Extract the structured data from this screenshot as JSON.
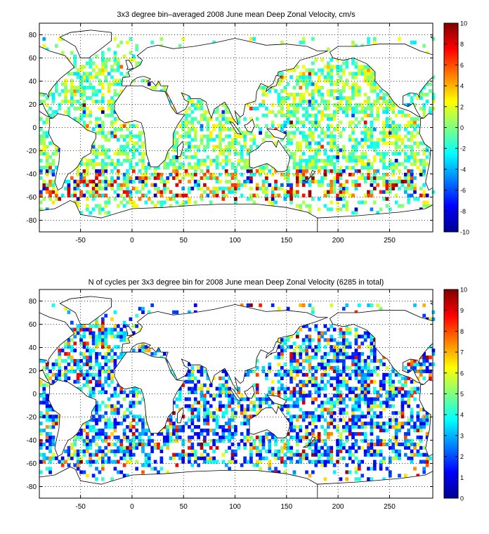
{
  "figure": {
    "background": "#ffffff"
  },
  "chart_data": [
    {
      "type": "heatmap",
      "title": "3x3 degree bin–averaged 2008 June mean Deep Zonal Velocity, cm/s",
      "xlabel": "",
      "ylabel": "",
      "xlim": [
        -90,
        292
      ],
      "ylim": [
        -90,
        90
      ],
      "xticks": [
        -50,
        0,
        50,
        100,
        150,
        200,
        250
      ],
      "yticks": [
        80,
        60,
        40,
        20,
        0,
        -20,
        -40,
        -60,
        -80
      ],
      "grid": "dotted",
      "bin_size_deg": 3,
      "colorbar": {
        "colormap": "jet",
        "min": -10,
        "max": 10,
        "ticks": [
          10,
          8,
          6,
          4,
          2,
          0,
          -2,
          -4,
          -6,
          -8,
          -10
        ]
      },
      "basemap": "world coastlines",
      "values_note": "colored 3x3 degree bins over the oceans"
    },
    {
      "type": "heatmap",
      "title": "N of cycles per 3x3 degree bin for 2008 June mean Deep Zonal Velocity (6285 in total)",
      "xlabel": "",
      "ylabel": "",
      "xlim": [
        -90,
        292
      ],
      "ylim": [
        -90,
        90
      ],
      "xticks": [
        -50,
        0,
        50,
        100,
        150,
        200,
        250
      ],
      "yticks": [
        80,
        60,
        40,
        20,
        0,
        -20,
        -40,
        -60,
        -80
      ],
      "grid": "dotted",
      "bin_size_deg": 3,
      "total_cycles": 6285,
      "colorbar": {
        "colormap": "jet",
        "min": 0,
        "max": 10,
        "ticks": [
          10,
          9,
          8,
          7,
          6,
          5,
          4,
          3,
          2,
          1,
          0
        ]
      },
      "basemap": "world coastlines",
      "values_note": "colored 3x3 degree bins over the oceans"
    }
  ]
}
